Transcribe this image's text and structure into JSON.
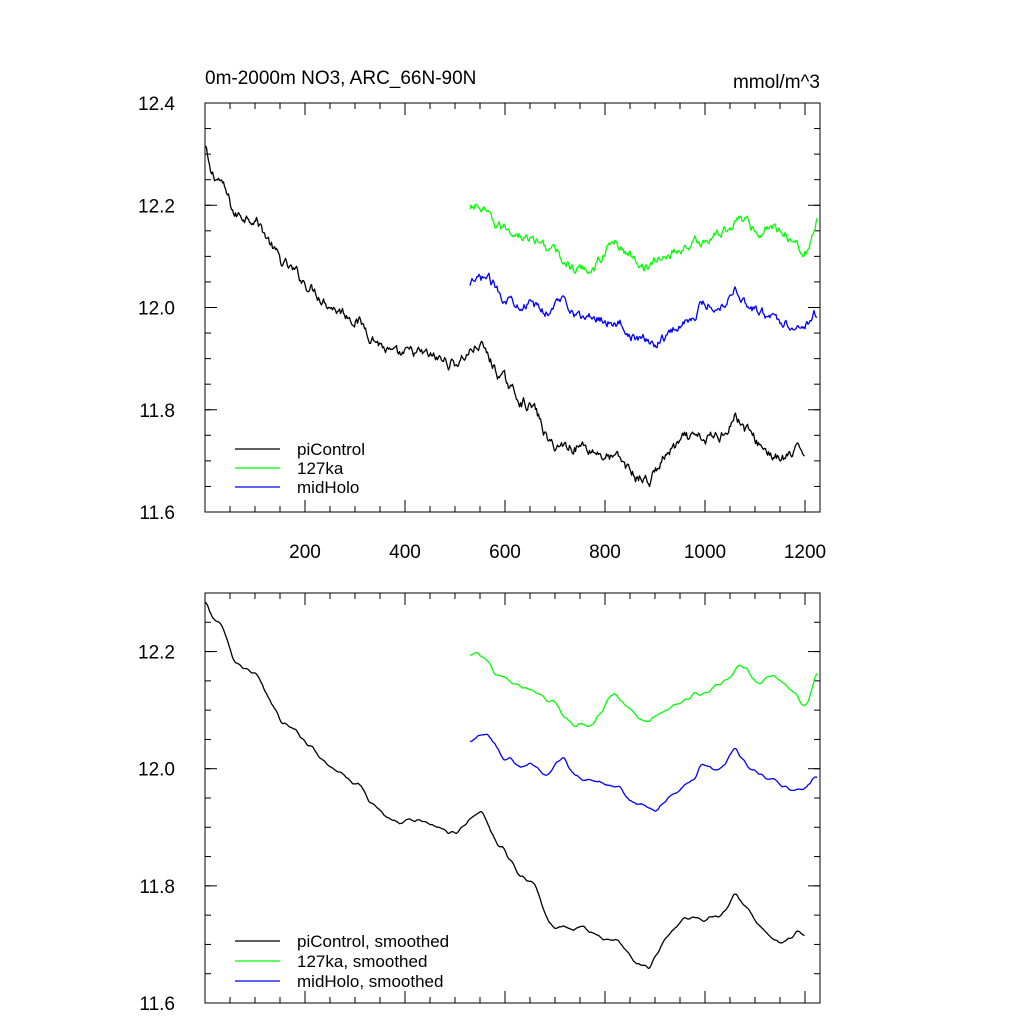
{
  "chart_data": [
    {
      "type": "line",
      "title": "0m-2000m NO3, ARC_66N-90N",
      "units": "mmol/m^3",
      "xlim": [
        0,
        1230
      ],
      "ylim": [
        11.6,
        12.4
      ],
      "xticks": [
        200,
        400,
        600,
        800,
        1000,
        1200
      ],
      "yticks": [
        11.6,
        11.8,
        12.0,
        12.2,
        12.4
      ],
      "xtick_labels": [
        "200",
        "400",
        "600",
        "800",
        "1000",
        "1200"
      ],
      "ytick_labels": [
        "11.6",
        "11.8",
        "12.0",
        "12.2",
        "12.4"
      ],
      "legend_position": "bottom-left",
      "series": [
        {
          "name": "piControl",
          "color": "#000000",
          "x_start": 1,
          "x_end": 1200,
          "anchors": [
            [
              0,
              12.32
            ],
            [
              10,
              12.26
            ],
            [
              30,
              12.25
            ],
            [
              60,
              12.18
            ],
            [
              100,
              12.18
            ],
            [
              150,
              12.09
            ],
            [
              200,
              12.05
            ],
            [
              260,
              12.0
            ],
            [
              300,
              11.98
            ],
            [
              340,
              11.94
            ],
            [
              380,
              11.9
            ],
            [
              420,
              11.91
            ],
            [
              460,
              11.9
            ],
            [
              500,
              11.89
            ],
            [
              550,
              11.93
            ],
            [
              580,
              11.88
            ],
            [
              620,
              11.83
            ],
            [
              660,
              11.8
            ],
            [
              690,
              11.73
            ],
            [
              720,
              11.73
            ],
            [
              760,
              11.73
            ],
            [
              800,
              11.71
            ],
            [
              830,
              11.7
            ],
            [
              860,
              11.67
            ],
            [
              890,
              11.66
            ],
            [
              920,
              11.71
            ],
            [
              960,
              11.74
            ],
            [
              1000,
              11.74
            ],
            [
              1030,
              11.75
            ],
            [
              1060,
              11.79
            ],
            [
              1100,
              11.74
            ],
            [
              1150,
              11.7
            ],
            [
              1200,
              11.72
            ]
          ],
          "noise": 0.008
        },
        {
          "name": "127ka",
          "color": "#00ff00",
          "x_start": 530,
          "x_end": 1225,
          "anchors": [
            [
              530,
              12.19
            ],
            [
              545,
              12.2
            ],
            [
              580,
              12.16
            ],
            [
              620,
              12.15
            ],
            [
              660,
              12.13
            ],
            [
              700,
              12.11
            ],
            [
              740,
              12.07
            ],
            [
              780,
              12.08
            ],
            [
              800,
              12.11
            ],
            [
              820,
              12.13
            ],
            [
              850,
              12.1
            ],
            [
              890,
              12.08
            ],
            [
              920,
              12.1
            ],
            [
              960,
              12.12
            ],
            [
              1000,
              12.13
            ],
            [
              1040,
              12.15
            ],
            [
              1070,
              12.18
            ],
            [
              1100,
              12.15
            ],
            [
              1130,
              12.16
            ],
            [
              1160,
              12.15
            ],
            [
              1190,
              12.12
            ],
            [
              1205,
              12.11
            ],
            [
              1225,
              12.17
            ]
          ],
          "noise": 0.007
        },
        {
          "name": "midHolo",
          "color": "#0000ff",
          "x_start": 530,
          "x_end": 1225,
          "anchors": [
            [
              530,
              12.04
            ],
            [
              560,
              12.06
            ],
            [
              600,
              12.02
            ],
            [
              640,
              12.01
            ],
            [
              680,
              11.99
            ],
            [
              720,
              12.02
            ],
            [
              750,
              11.98
            ],
            [
              790,
              11.98
            ],
            [
              830,
              11.97
            ],
            [
              860,
              11.94
            ],
            [
              900,
              11.93
            ],
            [
              940,
              11.96
            ],
            [
              970,
              11.98
            ],
            [
              1000,
              12.01
            ],
            [
              1030,
              12.0
            ],
            [
              1060,
              12.04
            ],
            [
              1090,
              12.0
            ],
            [
              1130,
              11.98
            ],
            [
              1170,
              11.97
            ],
            [
              1200,
              11.97
            ],
            [
              1225,
              11.99
            ]
          ],
          "noise": 0.007
        }
      ]
    },
    {
      "type": "line",
      "title": "",
      "units": "",
      "xlim": [
        0,
        1230
      ],
      "ylim": [
        11.6,
        12.3
      ],
      "xticks": [
        200,
        400,
        600,
        800,
        1000,
        1200
      ],
      "yticks": [
        11.6,
        11.8,
        12.0,
        12.2
      ],
      "xtick_labels": [],
      "ytick_labels": [
        "11.6",
        "11.8",
        "12.0",
        "12.2"
      ],
      "legend_position": "bottom-left",
      "series": [
        {
          "name": "piControl, smoothed",
          "color": "#000000",
          "x_start": 1,
          "x_end": 1200,
          "anchors": [
            [
              0,
              12.29
            ],
            [
              10,
              12.26
            ],
            [
              30,
              12.25
            ],
            [
              60,
              12.18
            ],
            [
              100,
              12.17
            ],
            [
              150,
              12.08
            ],
            [
              200,
              12.05
            ],
            [
              260,
              12.0
            ],
            [
              300,
              11.98
            ],
            [
              340,
              11.94
            ],
            [
              380,
              11.9
            ],
            [
              420,
              11.91
            ],
            [
              460,
              11.9
            ],
            [
              500,
              11.89
            ],
            [
              550,
              11.93
            ],
            [
              580,
              11.88
            ],
            [
              620,
              11.83
            ],
            [
              660,
              11.8
            ],
            [
              690,
              11.73
            ],
            [
              720,
              11.73
            ],
            [
              760,
              11.73
            ],
            [
              800,
              11.71
            ],
            [
              830,
              11.7
            ],
            [
              860,
              11.67
            ],
            [
              890,
              11.66
            ],
            [
              920,
              11.71
            ],
            [
              960,
              11.74
            ],
            [
              1000,
              11.74
            ],
            [
              1030,
              11.75
            ],
            [
              1060,
              11.79
            ],
            [
              1100,
              11.74
            ],
            [
              1150,
              11.7
            ],
            [
              1200,
              11.72
            ]
          ],
          "noise": 0.004
        },
        {
          "name": "127ka, smoothed",
          "color": "#00ff00",
          "x_start": 530,
          "x_end": 1225,
          "anchors": [
            [
              530,
              12.19
            ],
            [
              545,
              12.2
            ],
            [
              580,
              12.16
            ],
            [
              620,
              12.15
            ],
            [
              660,
              12.13
            ],
            [
              700,
              12.11
            ],
            [
              740,
              12.07
            ],
            [
              780,
              12.08
            ],
            [
              800,
              12.11
            ],
            [
              820,
              12.13
            ],
            [
              850,
              12.1
            ],
            [
              890,
              12.08
            ],
            [
              920,
              12.1
            ],
            [
              960,
              12.12
            ],
            [
              1000,
              12.13
            ],
            [
              1040,
              12.15
            ],
            [
              1070,
              12.18
            ],
            [
              1100,
              12.15
            ],
            [
              1130,
              12.16
            ],
            [
              1160,
              12.15
            ],
            [
              1190,
              12.12
            ],
            [
              1205,
              12.11
            ],
            [
              1225,
              12.17
            ]
          ],
          "noise": 0.004
        },
        {
          "name": "midHolo, smoothed",
          "color": "#0000ff",
          "x_start": 530,
          "x_end": 1225,
          "anchors": [
            [
              530,
              12.04
            ],
            [
              560,
              12.06
            ],
            [
              600,
              12.02
            ],
            [
              640,
              12.01
            ],
            [
              680,
              11.99
            ],
            [
              720,
              12.02
            ],
            [
              750,
              11.98
            ],
            [
              790,
              11.98
            ],
            [
              830,
              11.97
            ],
            [
              860,
              11.94
            ],
            [
              900,
              11.93
            ],
            [
              940,
              11.96
            ],
            [
              970,
              11.98
            ],
            [
              1000,
              12.01
            ],
            [
              1030,
              12.0
            ],
            [
              1060,
              12.04
            ],
            [
              1090,
              12.0
            ],
            [
              1130,
              11.98
            ],
            [
              1170,
              11.97
            ],
            [
              1200,
              11.97
            ],
            [
              1225,
              11.99
            ]
          ],
          "noise": 0.004
        }
      ]
    }
  ]
}
